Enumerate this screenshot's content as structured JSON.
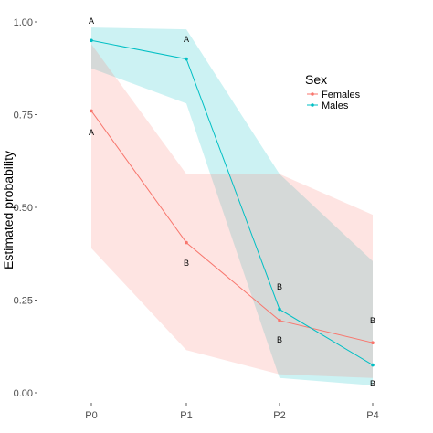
{
  "chart_data": {
    "type": "line",
    "categories": [
      "P0",
      "P1",
      "P2",
      "P4"
    ],
    "ylabel": "Estimated probability",
    "xlabel": "",
    "ylim": [
      0,
      1
    ],
    "y_ticks": [
      "0.00",
      "0.25",
      "0.50",
      "0.75",
      "1.00"
    ],
    "y_tick_values": [
      0,
      0.25,
      0.5,
      0.75,
      1.0
    ],
    "grid": false,
    "legend": {
      "title": "Sex",
      "position": "top-right"
    },
    "series": [
      {
        "name": "Females",
        "color": "#F8766D",
        "band_color": "#F8766D",
        "values": [
          0.76,
          0.405,
          0.195,
          0.135
        ],
        "lower": [
          0.39,
          0.115,
          0.05,
          0.04
        ],
        "upper": [
          0.94,
          0.59,
          0.59,
          0.48
        ],
        "letters": [
          "A",
          "B",
          "B",
          "B"
        ]
      },
      {
        "name": "Males",
        "color": "#00BFC4",
        "band_color": "#00BFC4",
        "values": [
          0.95,
          0.9,
          0.225,
          0.075
        ],
        "lower": [
          0.875,
          0.78,
          0.04,
          0.02
        ],
        "upper": [
          0.985,
          0.98,
          0.59,
          0.355
        ],
        "letters": [
          "A",
          "A",
          "B",
          "B"
        ]
      }
    ]
  }
}
